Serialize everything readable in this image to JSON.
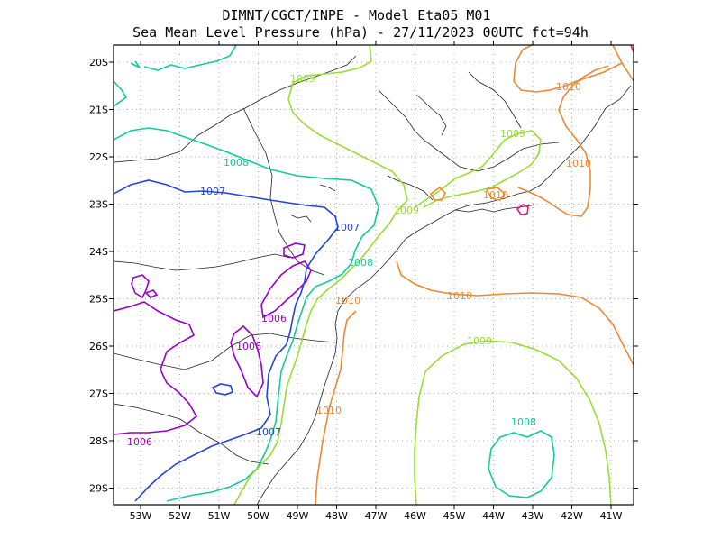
{
  "header": {
    "line1": "DIMNT/CGCT/INPE -  Model Eta05_M01_",
    "line2": "Sea Mean Level Pressure (hPa) - 27/11/2023 00UTC fct=94h"
  },
  "axes": {
    "lon_labels": [
      "53W",
      "52W",
      "51W",
      "50W",
      "49W",
      "48W",
      "47W",
      "46W",
      "45W",
      "44W",
      "43W",
      "42W",
      "41W"
    ],
    "lat_labels": [
      "20S",
      "21S",
      "22S",
      "23S",
      "24S",
      "25S",
      "26S",
      "27S",
      "28S",
      "29S"
    ]
  },
  "contours": {
    "c1006": {
      "value": "1006",
      "color": "#9900cc"
    },
    "c1007": {
      "value": "1007",
      "color": "#2244dd"
    },
    "c1008": {
      "value": "1008",
      "color": "#11cc99"
    },
    "c1009": {
      "value": "1009",
      "color": "#99dd33"
    },
    "c1010": {
      "value": "1010",
      "color": "#ee8833"
    },
    "c1011": {
      "value": "1011",
      "color": "#ee1188"
    }
  }
}
